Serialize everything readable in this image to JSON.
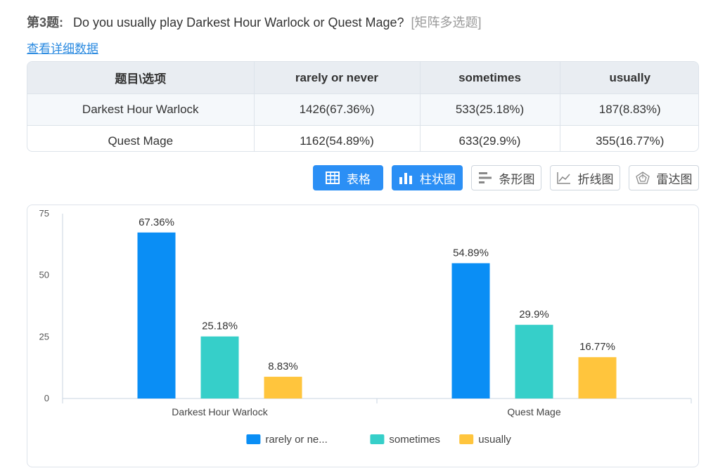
{
  "question": {
    "number": "第3题:",
    "text": "Do you usually play Darkest Hour Warlock or Quest Mage?",
    "type": "[矩阵多选题]"
  },
  "detail_link": "查看详细数据",
  "table": {
    "headers": [
      "题目\\选项",
      "rarely or never",
      "sometimes",
      "usually"
    ],
    "rows": [
      [
        "Darkest Hour Warlock",
        "1426(67.36%)",
        "533(25.18%)",
        "187(8.83%)"
      ],
      [
        "Quest Mage",
        "1162(54.89%)",
        "633(29.9%)",
        "355(16.77%)"
      ]
    ]
  },
  "toolbar": {
    "buttons": [
      {
        "label": "表格",
        "icon": "table-icon",
        "active": true
      },
      {
        "label": "柱状图",
        "icon": "bar-chart-icon",
        "active": true
      },
      {
        "label": "条形图",
        "icon": "horizontal-bar-icon",
        "active": false
      },
      {
        "label": "折线图",
        "icon": "line-chart-icon",
        "active": false
      },
      {
        "label": "雷达图",
        "icon": "radar-chart-icon",
        "active": false
      }
    ]
  },
  "chart_data": {
    "type": "bar",
    "categories": [
      "Darkest Hour Warlock",
      "Quest Mage"
    ],
    "series": [
      {
        "name": "rarely or ne...",
        "values": [
          67.36,
          54.89
        ],
        "labels": [
          "67.36%",
          "54.89%"
        ],
        "color": "#0a8ef5"
      },
      {
        "name": "sometimes",
        "values": [
          25.18,
          29.9
        ],
        "labels": [
          "25.18%",
          "29.9%"
        ],
        "color": "#36cfc9"
      },
      {
        "name": "usually",
        "values": [
          8.83,
          16.77
        ],
        "labels": [
          "8.83%",
          "16.77%"
        ],
        "color": "#ffc53d"
      }
    ],
    "ylim": [
      0,
      75
    ],
    "yticks": [
      0,
      25,
      50,
      75
    ],
    "grid": false,
    "legend": "bottom"
  }
}
